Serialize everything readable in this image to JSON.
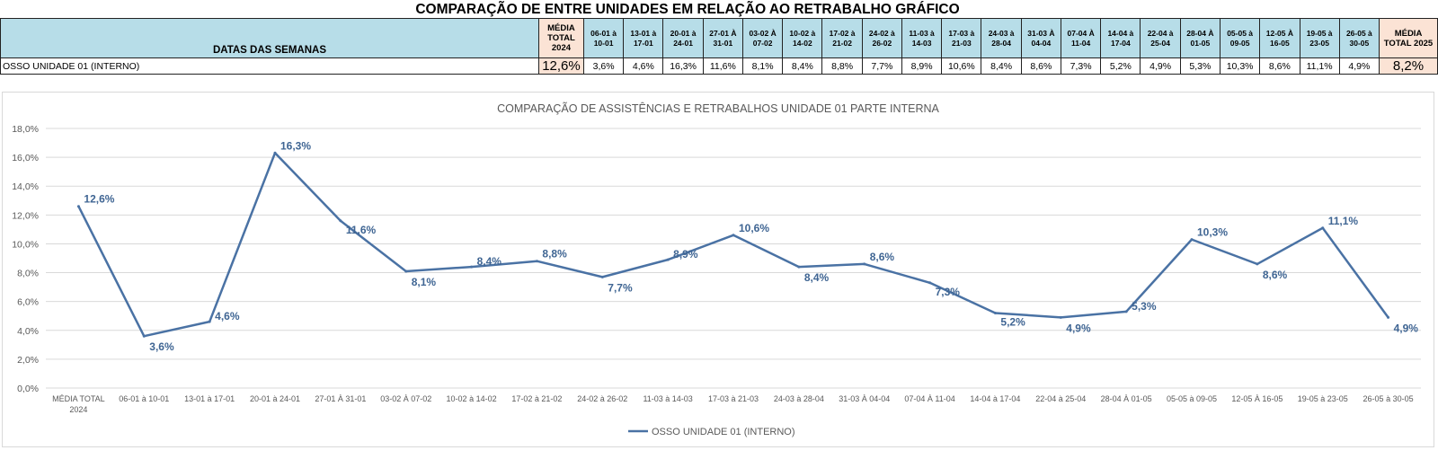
{
  "sheet": {
    "title": "COMPARAÇÃO DE ENTRE UNIDADES EM RELAÇÃO AO RETRABALHO GRÁFICO",
    "header_label": "DATAS DAS SEMANAS",
    "avg_2024_label": [
      "MÉDIA",
      "TOTAL",
      "2024"
    ],
    "avg_2025_label": [
      "MÉDIA",
      "TOTAL 2025"
    ],
    "weeks": [
      [
        "06-01 à",
        "10-01"
      ],
      [
        "13-01 à",
        "17-01"
      ],
      [
        "20-01 à",
        "24-01"
      ],
      [
        "27-01 À",
        "31-01"
      ],
      [
        "03-02 À",
        "07-02"
      ],
      [
        "10-02 à",
        "14-02"
      ],
      [
        "17-02 à",
        "21-02"
      ],
      [
        "24-02 à",
        "26-02"
      ],
      [
        "11-03 à",
        "14-03"
      ],
      [
        "17-03 à",
        "21-03"
      ],
      [
        "24-03 à",
        "28-04"
      ],
      [
        "31-03 À",
        "04-04"
      ],
      [
        "07-04 À",
        "11-04"
      ],
      [
        "14-04 à",
        "17-04"
      ],
      [
        "22-04 à",
        "25-04"
      ],
      [
        "28-04 À",
        "01-05"
      ],
      [
        "05-05 à",
        "09-05"
      ],
      [
        "12-05 À",
        "16-05"
      ],
      [
        "19-05 à",
        "23-05"
      ],
      [
        "26-05 à",
        "30-05"
      ]
    ],
    "row_label": "OSSO UNIDADE 01 (INTERNO)",
    "row_avg_2024": "12,6%",
    "row_values": [
      "3,6%",
      "4,6%",
      "16,3%",
      "11,6%",
      "8,1%",
      "8,4%",
      "8,8%",
      "7,7%",
      "8,9%",
      "10,6%",
      "8,4%",
      "8,6%",
      "7,3%",
      "5,2%",
      "4,9%",
      "5,3%",
      "10,3%",
      "8,6%",
      "11,1%",
      "4,9%"
    ],
    "row_avg_2025": "8,2%"
  },
  "chart_data": {
    "type": "line",
    "title": "COMPARAÇÃO DE ASSISTÊNCIAS E RETRABALHOS UNIDADE 01 PARTE INTERNA",
    "categories": [
      "MÉDIA TOTAL 2024",
      "06-01 à 10-01",
      "13-01 à 17-01",
      "20-01 à 24-01",
      "27-01 À 31-01",
      "03-02 À 07-02",
      "10-02 à 14-02",
      "17-02 à 21-02",
      "24-02 à 26-02",
      "11-03 à 14-03",
      "17-03 à 21-03",
      "24-03 à 28-04",
      "31-03 À 04-04",
      "07-04 À 11-04",
      "14-04 à 17-04",
      "22-04 à 25-04",
      "28-04 À 01-05",
      "05-05 à 09-05",
      "12-05 À 16-05",
      "19-05 à 23-05",
      "26-05 à 30-05"
    ],
    "series": [
      {
        "name": "OSSO UNIDADE 01 (INTERNO)",
        "values": [
          12.6,
          3.6,
          4.6,
          16.3,
          11.6,
          8.1,
          8.4,
          8.8,
          7.7,
          8.9,
          10.6,
          8.4,
          8.6,
          7.3,
          5.2,
          4.9,
          5.3,
          10.3,
          8.6,
          11.1,
          4.9
        ],
        "labels": [
          "12,6%",
          "3,6%",
          "4,6%",
          "16,3%",
          "11,6%",
          "8,1%",
          "8,4%",
          "8,8%",
          "7,7%",
          "8,9%",
          "10,6%",
          "8,4%",
          "8,6%",
          "7,3%",
          "5,2%",
          "4,9%",
          "5,3%",
          "10,3%",
          "8,6%",
          "11,1%",
          "4,9%"
        ]
      }
    ],
    "ylim": [
      0,
      18
    ],
    "yticks": [
      "0,0%",
      "2,0%",
      "4,0%",
      "6,0%",
      "8,0%",
      "10,0%",
      "12,0%",
      "14,0%",
      "16,0%",
      "18,0%"
    ],
    "grid": true,
    "legend": "bottom",
    "line_color": "#4a72a4",
    "label_color": "#3f6593"
  }
}
